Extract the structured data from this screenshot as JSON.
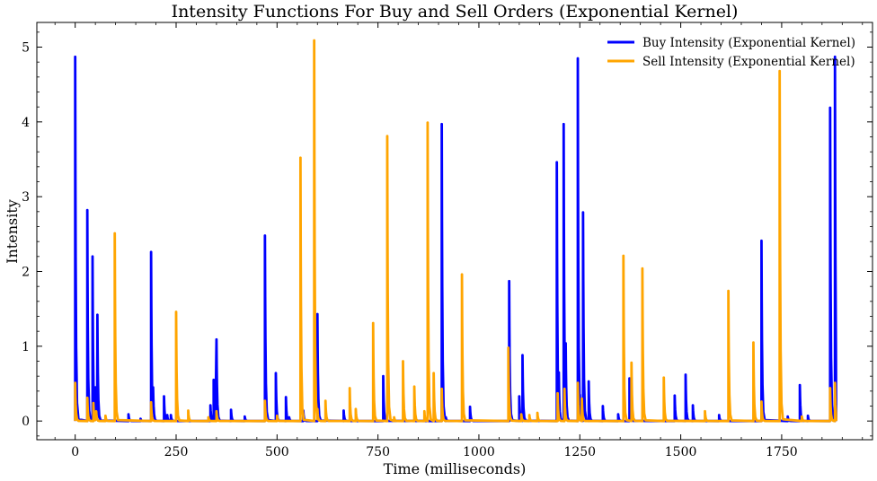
{
  "chart_data": {
    "type": "line",
    "title": "Intensity Functions For Buy and Sell Orders (Exponential Kernel)",
    "xlabel": "Time (milliseconds)",
    "ylabel": "Intensity",
    "xlim": [
      -95,
      1975
    ],
    "ylim": [
      -0.25,
      5.33
    ],
    "x_ticks": [
      0,
      250,
      500,
      750,
      1000,
      1250,
      1500,
      1750
    ],
    "x_tick_labels": [
      "0",
      "250",
      "500",
      "750",
      "1000",
      "1250",
      "1500",
      "1750"
    ],
    "y_ticks": [
      0,
      1,
      2,
      3,
      4,
      5
    ],
    "y_tick_labels": [
      "0",
      "1",
      "2",
      "3",
      "4",
      "5"
    ],
    "legend_position": "top-right",
    "baseline": 0,
    "decay_ms": 1.5,
    "x_end": 1885,
    "series": [
      {
        "name": "Buy Intensity (Exponential Kernel)",
        "color": "#0000ff",
        "events": [
          {
            "t": 0,
            "peak": 4.87
          },
          {
            "t": 30,
            "peak": 2.82
          },
          {
            "t": 43,
            "peak": 2.2
          },
          {
            "t": 50,
            "peak": 0.45
          },
          {
            "t": 55,
            "peak": 1.42
          },
          {
            "t": 132,
            "peak": 0.09
          },
          {
            "t": 162,
            "peak": 0.03
          },
          {
            "t": 188,
            "peak": 2.26
          },
          {
            "t": 193,
            "peak": 0.45
          },
          {
            "t": 220,
            "peak": 0.33
          },
          {
            "t": 228,
            "peak": 0.08
          },
          {
            "t": 237,
            "peak": 0.08
          },
          {
            "t": 335,
            "peak": 0.21
          },
          {
            "t": 343,
            "peak": 0.55
          },
          {
            "t": 350,
            "peak": 1.09
          },
          {
            "t": 386,
            "peak": 0.15
          },
          {
            "t": 420,
            "peak": 0.06
          },
          {
            "t": 470,
            "peak": 2.48
          },
          {
            "t": 497,
            "peak": 0.64
          },
          {
            "t": 522,
            "peak": 0.32
          },
          {
            "t": 530,
            "peak": 0.05
          },
          {
            "t": 565,
            "peak": 0.14
          },
          {
            "t": 600,
            "peak": 1.43
          },
          {
            "t": 665,
            "peak": 0.14
          },
          {
            "t": 763,
            "peak": 0.6
          },
          {
            "t": 908,
            "peak": 3.97
          },
          {
            "t": 918,
            "peak": 0.05
          },
          {
            "t": 978,
            "peak": 0.19
          },
          {
            "t": 1075,
            "peak": 1.87
          },
          {
            "t": 1100,
            "peak": 0.33
          },
          {
            "t": 1108,
            "peak": 0.88
          },
          {
            "t": 1193,
            "peak": 3.46
          },
          {
            "t": 1198,
            "peak": 0.65
          },
          {
            "t": 1210,
            "peak": 3.97
          },
          {
            "t": 1215,
            "peak": 1.04
          },
          {
            "t": 1245,
            "peak": 4.85
          },
          {
            "t": 1250,
            "peak": 0.35
          },
          {
            "t": 1258,
            "peak": 2.79
          },
          {
            "t": 1272,
            "peak": 0.53
          },
          {
            "t": 1307,
            "peak": 0.2
          },
          {
            "t": 1345,
            "peak": 0.09
          },
          {
            "t": 1373,
            "peak": 0.57
          },
          {
            "t": 1485,
            "peak": 0.34
          },
          {
            "t": 1512,
            "peak": 0.62
          },
          {
            "t": 1530,
            "peak": 0.21
          },
          {
            "t": 1595,
            "peak": 0.08
          },
          {
            "t": 1700,
            "peak": 2.41
          },
          {
            "t": 1765,
            "peak": 0.06
          },
          {
            "t": 1795,
            "peak": 0.48
          },
          {
            "t": 1815,
            "peak": 0.07
          },
          {
            "t": 1870,
            "peak": 4.19
          },
          {
            "t": 1882,
            "peak": 4.87
          }
        ]
      },
      {
        "name": "Sell Intensity (Exponential Kernel)",
        "color": "#ffa500",
        "events": [
          {
            "t": 0,
            "peak": 0.51
          },
          {
            "t": 30,
            "peak": 0.31
          },
          {
            "t": 45,
            "peak": 0.24
          },
          {
            "t": 52,
            "peak": 0.13
          },
          {
            "t": 75,
            "peak": 0.07
          },
          {
            "t": 98,
            "peak": 2.51
          },
          {
            "t": 188,
            "peak": 0.25
          },
          {
            "t": 250,
            "peak": 1.46
          },
          {
            "t": 280,
            "peak": 0.14
          },
          {
            "t": 330,
            "peak": 0.05
          },
          {
            "t": 350,
            "peak": 0.13
          },
          {
            "t": 470,
            "peak": 0.27
          },
          {
            "t": 500,
            "peak": 0.07
          },
          {
            "t": 558,
            "peak": 3.52
          },
          {
            "t": 592,
            "peak": 5.09
          },
          {
            "t": 600,
            "peak": 0.16
          },
          {
            "t": 620,
            "peak": 0.27
          },
          {
            "t": 680,
            "peak": 0.44
          },
          {
            "t": 695,
            "peak": 0.16
          },
          {
            "t": 738,
            "peak": 1.31
          },
          {
            "t": 773,
            "peak": 3.81
          },
          {
            "t": 790,
            "peak": 0.05
          },
          {
            "t": 812,
            "peak": 0.8
          },
          {
            "t": 840,
            "peak": 0.46
          },
          {
            "t": 865,
            "peak": 0.13
          },
          {
            "t": 873,
            "peak": 3.99
          },
          {
            "t": 888,
            "peak": 0.64
          },
          {
            "t": 908,
            "peak": 0.43
          },
          {
            "t": 958,
            "peak": 1.96
          },
          {
            "t": 1073,
            "peak": 0.98
          },
          {
            "t": 1105,
            "peak": 0.09
          },
          {
            "t": 1125,
            "peak": 0.08
          },
          {
            "t": 1145,
            "peak": 0.11
          },
          {
            "t": 1195,
            "peak": 0.37
          },
          {
            "t": 1212,
            "peak": 0.43
          },
          {
            "t": 1245,
            "peak": 0.51
          },
          {
            "t": 1255,
            "peak": 0.3
          },
          {
            "t": 1358,
            "peak": 2.21
          },
          {
            "t": 1378,
            "peak": 0.78
          },
          {
            "t": 1405,
            "peak": 2.04
          },
          {
            "t": 1458,
            "peak": 0.58
          },
          {
            "t": 1560,
            "peak": 0.13
          },
          {
            "t": 1618,
            "peak": 1.74
          },
          {
            "t": 1680,
            "peak": 1.05
          },
          {
            "t": 1700,
            "peak": 0.26
          },
          {
            "t": 1745,
            "peak": 4.68
          },
          {
            "t": 1800,
            "peak": 0.06
          },
          {
            "t": 1870,
            "peak": 0.44
          },
          {
            "t": 1882,
            "peak": 0.51
          }
        ]
      }
    ]
  }
}
